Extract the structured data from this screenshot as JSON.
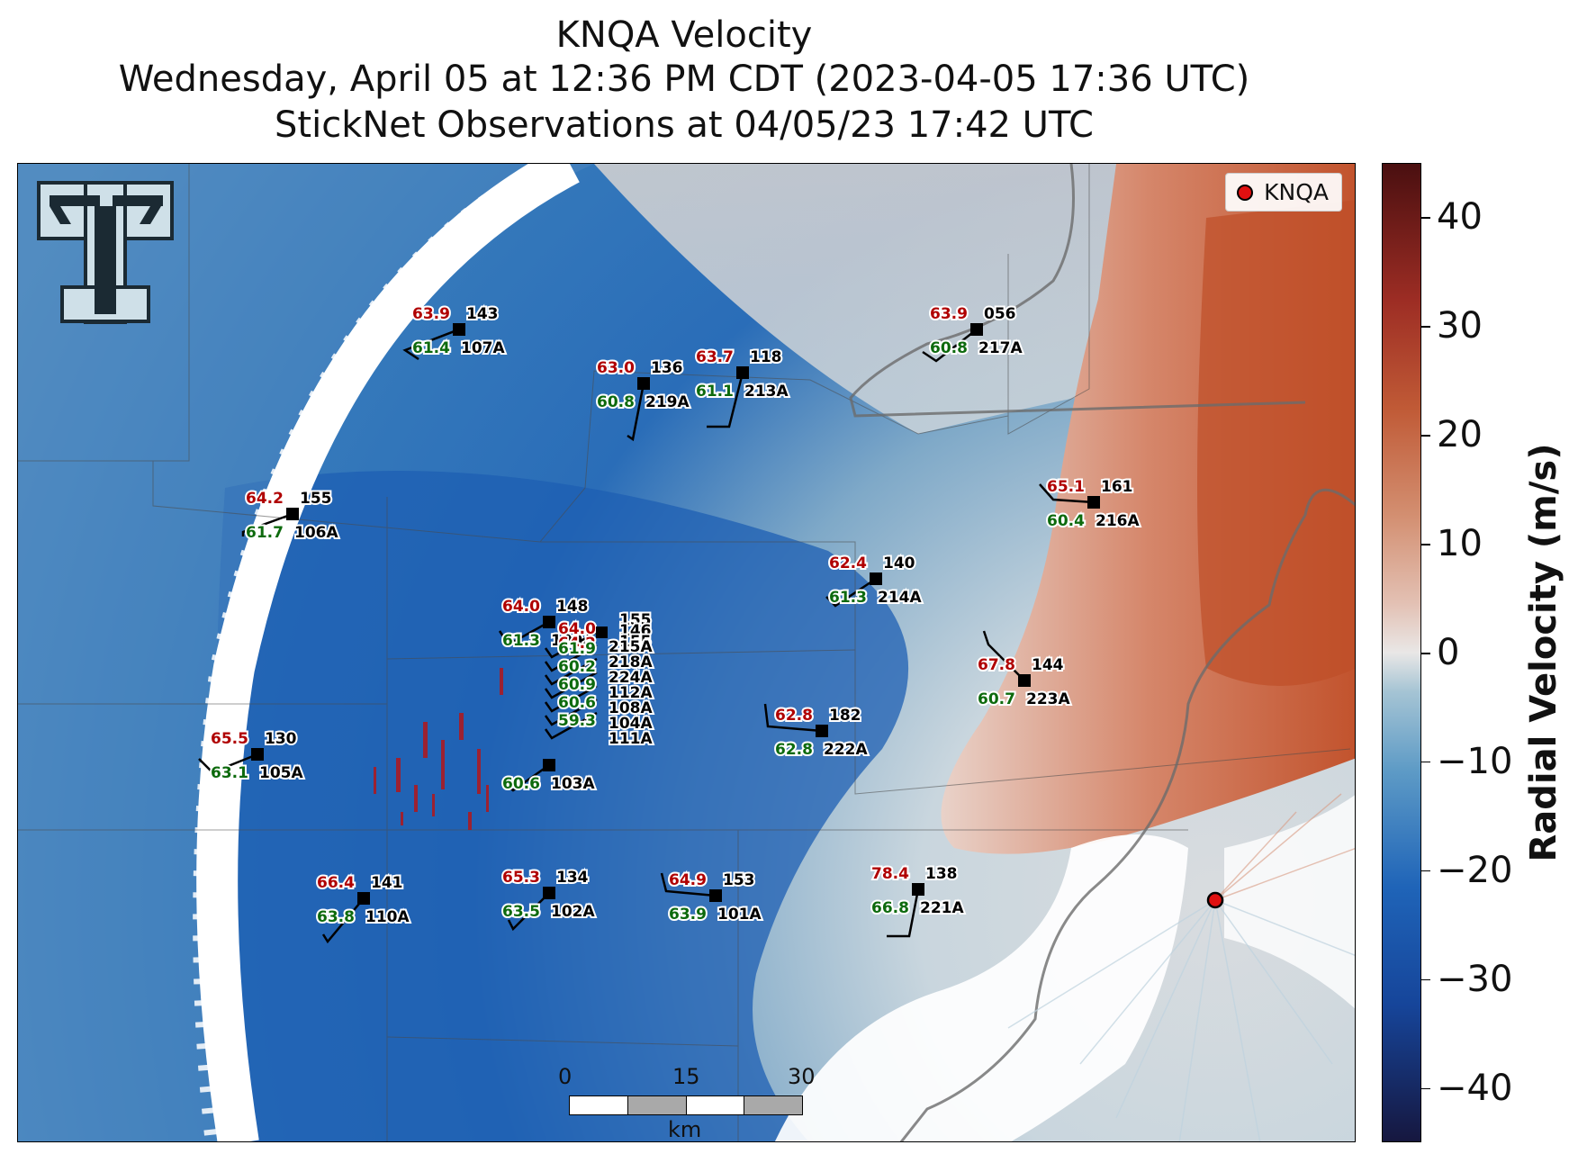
{
  "title": {
    "line1": "KNQA Velocity",
    "line2": "Wednesday, April 05 at 12:36 PM CDT (2023-04-05 17:36 UTC)",
    "line3": "StickNet Observations at 04/05/23 17:42 UTC"
  },
  "legend": {
    "label": "KNQA",
    "marker_color": "#e01010"
  },
  "colorbar": {
    "title": "Radial Velocity (m/s)",
    "ticks": [
      "40",
      "30",
      "20",
      "10",
      "0",
      "−10",
      "−20",
      "−30",
      "−40"
    ],
    "tick_values": [
      40,
      30,
      20,
      10,
      0,
      -10,
      -20,
      -30,
      -40
    ],
    "range": [
      -45,
      45
    ],
    "colors": {
      "negative": "#1f5fb0",
      "zero": "#e8e6e5",
      "positive": "#c0552f"
    }
  },
  "scale_bar": {
    "labels": [
      "0",
      "15",
      "30"
    ],
    "unit": "km"
  },
  "logo": {
    "name": "texas-tech-double-t-logo"
  },
  "stations": [
    {
      "id": "107A",
      "temp": "63.9",
      "dew": "61.4",
      "dir": "143"
    },
    {
      "id": "219A",
      "temp": "63.0",
      "dew": "60.8",
      "dir": "136"
    },
    {
      "id": "213A",
      "temp": "63.7",
      "dew": "61.1",
      "dir": "118"
    },
    {
      "id": "217A",
      "temp": "63.9",
      "dew": "60.8",
      "dir": "056"
    },
    {
      "id": "106A",
      "temp": "64.2",
      "dew": "61.7",
      "dir": "155"
    },
    {
      "id": "216A",
      "temp": "65.1",
      "dew": "60.4",
      "dir": "161"
    },
    {
      "id": "214A",
      "temp": "62.4",
      "dew": "61.3",
      "dir": "140"
    },
    {
      "id": "109A",
      "temp": "64.0",
      "dew": "61.3",
      "dir": "148"
    },
    {
      "id": "223A",
      "temp": "67.8",
      "dew": "60.7",
      "dir": "144"
    },
    {
      "id": "222A",
      "temp": "62.8",
      "dew": "62.8",
      "dir": "182"
    },
    {
      "id": "105A",
      "temp": "65.5",
      "dew": "63.1",
      "dir": "130"
    },
    {
      "id": "103A",
      "temp": "",
      "dew": "60.6",
      "dir": ""
    },
    {
      "id": "110A",
      "temp": "66.4",
      "dew": "63.8",
      "dir": "141"
    },
    {
      "id": "102A",
      "temp": "65.3",
      "dew": "63.5",
      "dir": "134"
    },
    {
      "id": "101A",
      "temp": "64.9",
      "dew": "63.9",
      "dir": "153"
    },
    {
      "id": "221A",
      "temp": "78.4",
      "dew": "66.8",
      "dir": "138"
    }
  ],
  "cluster": {
    "temps": [
      "64.0",
      "64.2"
    ],
    "dews": [
      "61.9",
      "60.2",
      "60.9",
      "60.6",
      "59.3"
    ],
    "dirs": [
      "155",
      "146",
      "155"
    ],
    "ids": [
      "215A",
      "218A",
      "224A",
      "112A",
      "108A",
      "104A",
      "111A"
    ]
  }
}
